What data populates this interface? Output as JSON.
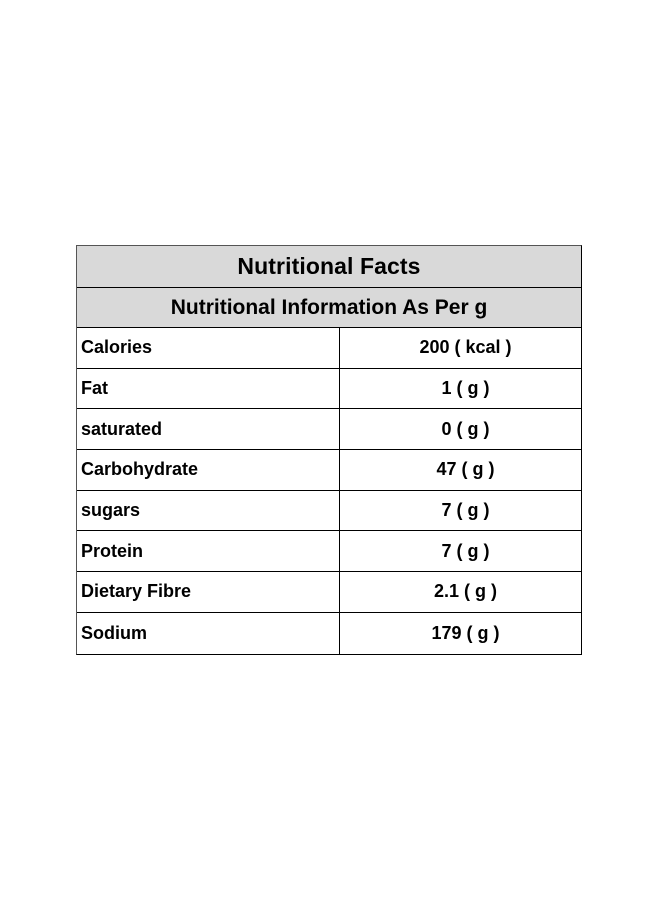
{
  "table": {
    "title": "Nutritional Facts",
    "subtitle": "Nutritional Information As Per g",
    "rows": [
      {
        "label": "Calories",
        "value": "200 ( kcal )"
      },
      {
        "label": "Fat",
        "value": "1 ( g )"
      },
      {
        "label": "saturated",
        "value": "0 ( g )"
      },
      {
        "label": "Carbohydrate",
        "value": "47 ( g )"
      },
      {
        "label": "sugars",
        "value": "7 ( g )"
      },
      {
        "label": "Protein",
        "value": "7 ( g )"
      },
      {
        "label": "Dietary Fibre",
        "value": "2.1 ( g )"
      },
      {
        "label": "Sodium",
        "value": "179 ( g )"
      }
    ]
  }
}
